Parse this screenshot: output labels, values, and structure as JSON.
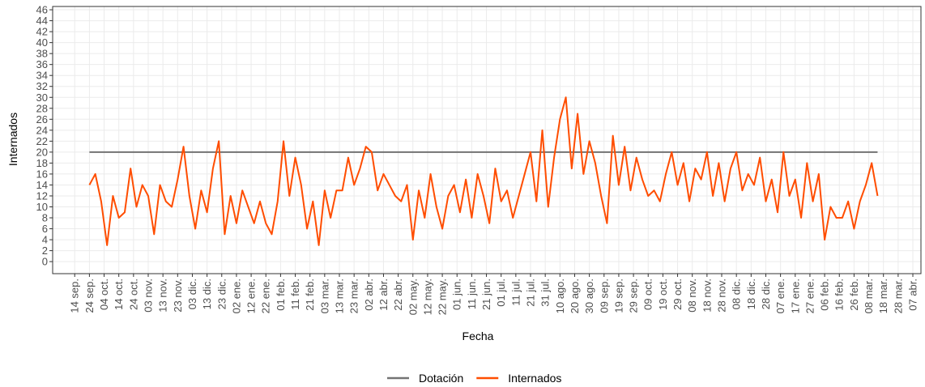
{
  "chart_data": {
    "type": "line",
    "x_label": "Fecha",
    "y_label": "Internados",
    "xlim": [
      -15,
      575.5
    ],
    "ylim": [
      -2.2,
      46.6
    ],
    "xticks": [
      {
        "value": 0,
        "label": "14 sep."
      },
      {
        "value": 10,
        "label": "24 sep."
      },
      {
        "value": 20,
        "label": "04 oct."
      },
      {
        "value": 30,
        "label": "14 oct."
      },
      {
        "value": 40,
        "label": "24 oct."
      },
      {
        "value": 50,
        "label": "03 nov."
      },
      {
        "value": 60,
        "label": "13 nov."
      },
      {
        "value": 70,
        "label": "23 nov."
      },
      {
        "value": 80,
        "label": "03 dic."
      },
      {
        "value": 90,
        "label": "13 dic."
      },
      {
        "value": 100,
        "label": "23 dic."
      },
      {
        "value": 110,
        "label": "02 ene."
      },
      {
        "value": 120,
        "label": "12 ene."
      },
      {
        "value": 130,
        "label": "22 ene."
      },
      {
        "value": 140,
        "label": "01 feb."
      },
      {
        "value": 150,
        "label": "11 feb."
      },
      {
        "value": 160,
        "label": "21 feb."
      },
      {
        "value": 170,
        "label": "03 mar."
      },
      {
        "value": 180,
        "label": "13 mar."
      },
      {
        "value": 190,
        "label": "23 mar."
      },
      {
        "value": 200,
        "label": "02 abr."
      },
      {
        "value": 210,
        "label": "12 abr."
      },
      {
        "value": 220,
        "label": "22 abr."
      },
      {
        "value": 230,
        "label": "02 may."
      },
      {
        "value": 240,
        "label": "12 may."
      },
      {
        "value": 250,
        "label": "22 may."
      },
      {
        "value": 260,
        "label": "01 jun."
      },
      {
        "value": 270,
        "label": "11 jun."
      },
      {
        "value": 280,
        "label": "21 jun."
      },
      {
        "value": 290,
        "label": "01 jul."
      },
      {
        "value": 300,
        "label": "11 jul."
      },
      {
        "value": 310,
        "label": "21 jul."
      },
      {
        "value": 320,
        "label": "31 jul."
      },
      {
        "value": 330,
        "label": "10 ago."
      },
      {
        "value": 340,
        "label": "20 ago."
      },
      {
        "value": 350,
        "label": "30 ago."
      },
      {
        "value": 360,
        "label": "09 sep."
      },
      {
        "value": 370,
        "label": "19 sep."
      },
      {
        "value": 380,
        "label": "29 sep."
      },
      {
        "value": 390,
        "label": "09 oct."
      },
      {
        "value": 400,
        "label": "19 oct."
      },
      {
        "value": 410,
        "label": "29 oct."
      },
      {
        "value": 420,
        "label": "08 nov."
      },
      {
        "value": 430,
        "label": "18 nov."
      },
      {
        "value": 440,
        "label": "28 nov."
      },
      {
        "value": 450,
        "label": "08 dic."
      },
      {
        "value": 460,
        "label": "18 dic."
      },
      {
        "value": 470,
        "label": "28 dic."
      },
      {
        "value": 480,
        "label": "07 ene."
      },
      {
        "value": 490,
        "label": "17 ene."
      },
      {
        "value": 500,
        "label": "27 ene."
      },
      {
        "value": 510,
        "label": "06 feb."
      },
      {
        "value": 520,
        "label": "16 feb."
      },
      {
        "value": 530,
        "label": "26 feb."
      },
      {
        "value": 540,
        "label": "08 mar."
      },
      {
        "value": 550,
        "label": "18 mar."
      },
      {
        "value": 560,
        "label": "28 mar."
      },
      {
        "value": 570,
        "label": "07 abr."
      }
    ],
    "yticks": [
      0,
      2,
      4,
      6,
      8,
      10,
      12,
      14,
      16,
      18,
      20,
      22,
      24,
      26,
      28,
      30,
      32,
      34,
      36,
      38,
      40,
      42,
      44,
      46
    ],
    "grid": true,
    "legend": "bottom",
    "series": [
      {
        "name": "Dotación",
        "color": "#737373",
        "x": [
          10,
          546
        ],
        "values": [
          20,
          20
        ]
      },
      {
        "name": "Internados",
        "color": "#ff4d00",
        "x": [
          10,
          14,
          18,
          22,
          26,
          30,
          34,
          38,
          42,
          46,
          50,
          54,
          58,
          62,
          66,
          70,
          74,
          78,
          82,
          86,
          90,
          94,
          98,
          102,
          106,
          110,
          114,
          118,
          122,
          126,
          130,
          134,
          138,
          142,
          146,
          150,
          154,
          158,
          162,
          166,
          170,
          174,
          178,
          182,
          186,
          190,
          194,
          198,
          202,
          206,
          210,
          214,
          218,
          222,
          226,
          230,
          234,
          238,
          242,
          246,
          250,
          254,
          258,
          262,
          266,
          270,
          274,
          278,
          282,
          286,
          290,
          294,
          298,
          302,
          306,
          310,
          314,
          318,
          322,
          326,
          330,
          334,
          338,
          342,
          346,
          350,
          354,
          358,
          362,
          366,
          370,
          374,
          378,
          382,
          386,
          390,
          394,
          398,
          402,
          406,
          410,
          414,
          418,
          422,
          426,
          430,
          434,
          438,
          442,
          446,
          450,
          454,
          458,
          462,
          466,
          470,
          474,
          478,
          482,
          486,
          490,
          494,
          498,
          502,
          506,
          510,
          514,
          518,
          522,
          526,
          530,
          534,
          538,
          542,
          546
        ],
        "values": [
          14,
          16,
          11,
          3,
          12,
          8,
          9,
          17,
          10,
          14,
          12,
          5,
          14,
          11,
          10,
          15,
          21,
          12,
          6,
          13,
          9,
          17,
          22,
          5,
          12,
          7,
          13,
          10,
          7,
          11,
          7,
          5,
          11,
          22,
          12,
          19,
          14,
          6,
          11,
          3,
          13,
          8,
          13,
          13,
          19,
          14,
          17,
          21,
          20,
          13,
          16,
          14,
          12,
          11,
          14,
          4,
          13,
          8,
          16,
          10,
          6,
          12,
          14,
          9,
          15,
          8,
          16,
          12,
          7,
          17,
          11,
          13,
          8,
          12,
          16,
          20,
          11,
          24,
          10,
          19,
          26,
          30,
          17,
          27,
          16,
          22,
          18,
          12,
          7,
          23,
          14,
          21,
          13,
          19,
          15,
          12,
          13,
          11,
          16,
          20,
          14,
          18,
          11,
          17,
          15,
          20,
          12,
          18,
          11,
          17,
          20,
          13,
          16,
          14,
          19,
          11,
          15,
          9,
          20,
          12,
          15,
          8,
          18,
          11,
          16,
          4,
          10,
          8,
          8,
          11,
          6,
          11,
          14,
          18,
          12
        ]
      }
    ]
  }
}
